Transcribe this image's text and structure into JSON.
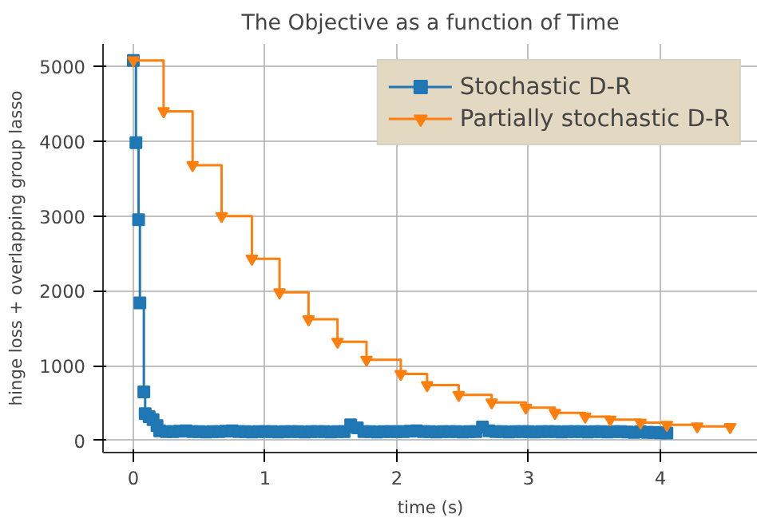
{
  "chart_data": {
    "type": "step",
    "title": "The Objective as a function of Time",
    "xlabel": "time (s)",
    "ylabel": "hinge loss + overlapping group lasso",
    "xlim": [
      -0.23,
      4.74
    ],
    "ylim": [
      -160,
      5300
    ],
    "xticks": [
      0,
      1,
      2,
      3,
      4
    ],
    "yticks": [
      0,
      1000,
      2000,
      3000,
      4000,
      5000
    ],
    "grid": true,
    "legend": "top right",
    "series": [
      {
        "name": "Stochastic D-R",
        "color": "#1f77b4",
        "marker": "square",
        "x": [
          0,
          0.02,
          0.04,
          0.05,
          0.08,
          0.09,
          0.12,
          0.15,
          0.18,
          0.2,
          0.25,
          0.3,
          0.35,
          0.4,
          0.45,
          0.5,
          0.55,
          0.6,
          0.65,
          0.7,
          0.75,
          0.8,
          0.85,
          0.9,
          0.95,
          1.0,
          1.05,
          1.1,
          1.15,
          1.2,
          1.25,
          1.3,
          1.35,
          1.4,
          1.45,
          1.5,
          1.55,
          1.6,
          1.65,
          1.7,
          1.75,
          1.8,
          1.85,
          1.9,
          1.95,
          2.0,
          2.05,
          2.1,
          2.15,
          2.2,
          2.25,
          2.3,
          2.35,
          2.4,
          2.45,
          2.5,
          2.55,
          2.6,
          2.65,
          2.7,
          2.75,
          2.8,
          2.85,
          2.9,
          2.95,
          3.0,
          3.05,
          3.1,
          3.15,
          3.2,
          3.25,
          3.3,
          3.35,
          3.4,
          3.45,
          3.5,
          3.55,
          3.6,
          3.65,
          3.7,
          3.75,
          3.8,
          3.85,
          3.9,
          3.95,
          4.0,
          4.05
        ],
        "values": [
          5080,
          3980,
          2950,
          1840,
          650,
          360,
          320,
          280,
          200,
          130,
          120,
          120,
          125,
          130,
          120,
          120,
          115,
          120,
          120,
          125,
          130,
          120,
          120,
          115,
          120,
          120,
          120,
          115,
          120,
          120,
          120,
          115,
          120,
          120,
          120,
          115,
          120,
          120,
          210,
          170,
          120,
          120,
          115,
          120,
          120,
          120,
          120,
          125,
          130,
          120,
          120,
          115,
          120,
          120,
          120,
          115,
          120,
          120,
          180,
          130,
          120,
          120,
          115,
          120,
          120,
          120,
          115,
          120,
          120,
          120,
          115,
          120,
          120,
          120,
          115,
          120,
          120,
          115,
          120,
          120,
          115,
          110,
          120,
          110,
          110,
          105,
          100
        ]
      },
      {
        "name": "Partially stochastic D-R",
        "color": "#ff7f0e",
        "marker": "triangle",
        "x": [
          0,
          0.23,
          0.45,
          0.67,
          0.9,
          1.11,
          1.33,
          1.55,
          1.77,
          2.03,
          2.23,
          2.47,
          2.72,
          2.98,
          3.2,
          3.43,
          3.62,
          3.85,
          4.05,
          4.28,
          4.53
        ],
        "values": [
          5080,
          4400,
          3680,
          3000,
          2430,
          1980,
          1620,
          1320,
          1080,
          890,
          740,
          610,
          510,
          440,
          370,
          320,
          280,
          240,
          210,
          190,
          180
        ]
      }
    ]
  }
}
